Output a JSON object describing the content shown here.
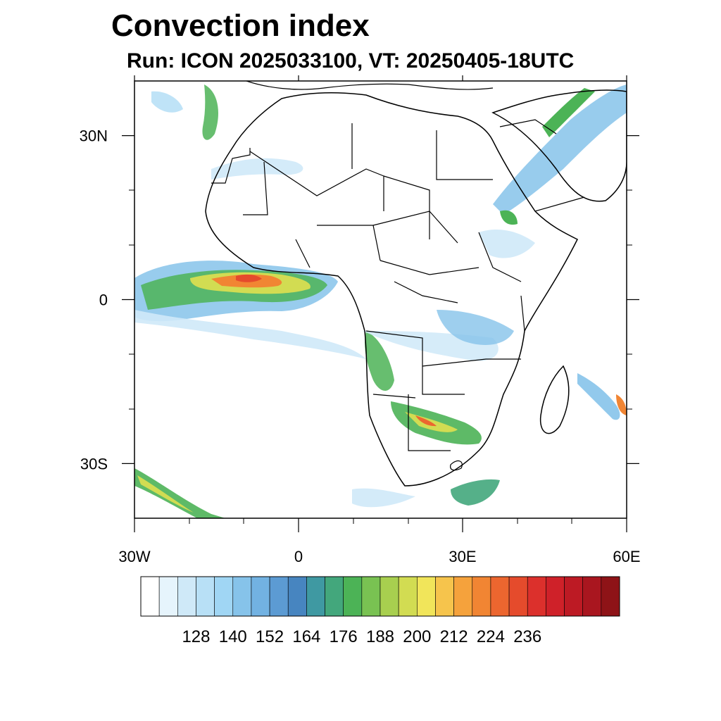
{
  "title": "Convection index",
  "subtitle": "Run: ICON 2025033100,  VT: 20250405-18UTC",
  "map": {
    "lon_range": [
      -30,
      60
    ],
    "lat_range": [
      -40,
      40
    ],
    "lon_ticks": [
      {
        "value": -30,
        "label": "30W"
      },
      {
        "value": 0,
        "label": "0"
      },
      {
        "value": 30,
        "label": "30E"
      },
      {
        "value": 60,
        "label": "60E"
      }
    ],
    "lat_ticks": [
      {
        "value": 30,
        "label": "30N"
      },
      {
        "value": 0,
        "label": "0"
      },
      {
        "value": -30,
        "label": "30S"
      }
    ],
    "colorbar": {
      "colors": [
        "#ffffff",
        "#e6f4fc",
        "#cfe9f8",
        "#b8e0f6",
        "#a0d6f4",
        "#86c3ea",
        "#72b2e2",
        "#5c9bd3",
        "#4785c0",
        "#3f99a2",
        "#43a77c",
        "#4cb356",
        "#79c252",
        "#a8cf4f",
        "#d2dc52",
        "#f1e55a",
        "#f6c44c",
        "#f5a23c",
        "#f18533",
        "#ec662f",
        "#e54b2c",
        "#dc302c",
        "#cf2129",
        "#bd1a24",
        "#a9161f",
        "#8e1317"
      ],
      "labels": [
        "128",
        "140",
        "152",
        "164",
        "176",
        "188",
        "200",
        "212",
        "224",
        "236"
      ]
    }
  }
}
